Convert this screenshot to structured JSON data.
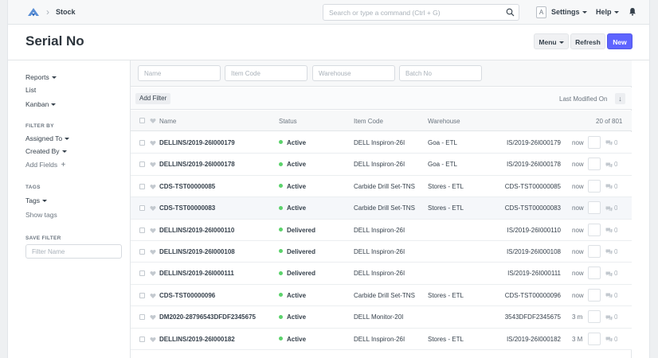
{
  "navbar": {
    "breadcrumb": "Stock",
    "search_placeholder": "Search or type a command (Ctrl + G)",
    "avatar_letter": "A",
    "settings_label": "Settings",
    "help_label": "Help"
  },
  "page": {
    "title": "Serial No",
    "menu_label": "Menu",
    "refresh_label": "Refresh",
    "new_label": "New"
  },
  "sidebar": {
    "views": [
      "Reports",
      "List",
      "Kanban"
    ],
    "filter_by_heading": "FILTER BY",
    "filters": [
      "Assigned To",
      "Created By",
      "Add Fields"
    ],
    "tags_heading": "TAGS",
    "tags_label": "Tags",
    "show_tags": "Show tags",
    "save_filter_heading": "SAVE FILTER",
    "filter_name_placeholder": "Filter Name"
  },
  "filters": {
    "name_placeholder": "Name",
    "item_code_placeholder": "Item Code",
    "warehouse_placeholder": "Warehouse",
    "batch_no_placeholder": "Batch No",
    "add_filter_label": "Add Filter",
    "sort_label": "Last Modified On"
  },
  "table": {
    "headers": {
      "name": "Name",
      "status": "Status",
      "item_code": "Item Code",
      "warehouse": "Warehouse",
      "count": "20 of 801"
    },
    "rows": [
      {
        "name": "DELLINS/2019-26I000179",
        "status": "Active",
        "item_code": "DELL Inspiron-26I",
        "warehouse": "Goa - ETL",
        "serial": "IS/2019-26I000179",
        "modified": "now",
        "comments": "0"
      },
      {
        "name": "DELLINS/2019-26I000178",
        "status": "Active",
        "item_code": "DELL Inspiron-26I",
        "warehouse": "Goa - ETL",
        "serial": "IS/2019-26I000178",
        "modified": "now",
        "comments": "0"
      },
      {
        "name": "CDS-TST00000085",
        "status": "Active",
        "item_code": "Carbide Drill Set-TNS",
        "warehouse": "Stores - ETL",
        "serial": "CDS-TST00000085",
        "modified": "now",
        "comments": "0"
      },
      {
        "name": "CDS-TST00000083",
        "status": "Active",
        "item_code": "Carbide Drill Set-TNS",
        "warehouse": "Stores - ETL",
        "serial": "CDS-TST00000083",
        "modified": "now",
        "comments": "0"
      },
      {
        "name": "DELLINS/2019-26I000110",
        "status": "Delivered",
        "item_code": "DELL Inspiron-26I",
        "warehouse": "",
        "serial": "IS/2019-26I000110",
        "modified": "now",
        "comments": "0"
      },
      {
        "name": "DELLINS/2019-26I000108",
        "status": "Delivered",
        "item_code": "DELL Inspiron-26I",
        "warehouse": "",
        "serial": "IS/2019-26I000108",
        "modified": "now",
        "comments": "0"
      },
      {
        "name": "DELLINS/2019-26I000111",
        "status": "Delivered",
        "item_code": "DELL Inspiron-26I",
        "warehouse": "",
        "serial": "IS/2019-26I000111",
        "modified": "now",
        "comments": "0"
      },
      {
        "name": "CDS-TST00000096",
        "status": "Active",
        "item_code": "Carbide Drill Set-TNS",
        "warehouse": "Stores - ETL",
        "serial": "CDS-TST00000096",
        "modified": "now",
        "comments": "0"
      },
      {
        "name": "DM2020-28796543DFDF2345675",
        "status": "Active",
        "item_code": "DELL Monitor-20I",
        "warehouse": "",
        "serial": "3543DFDF2345675",
        "modified": "3 m",
        "comments": "0"
      },
      {
        "name": "DELLINS/2019-26I000182",
        "status": "Active",
        "item_code": "DELL Inspiron-26I",
        "warehouse": "Stores - ETL",
        "serial": "IS/2019-26I000182",
        "modified": "3 M",
        "comments": "0"
      }
    ]
  },
  "colors": {
    "primary": "#5e64ff",
    "status_dot": "#5bd26b",
    "text": "#36414c",
    "muted": "#6c7680"
  },
  "icons": [
    "logo-icon",
    "search-icon",
    "bell-icon",
    "heart-icon",
    "comment-icon",
    "sort-icon",
    "plus-icon"
  ]
}
